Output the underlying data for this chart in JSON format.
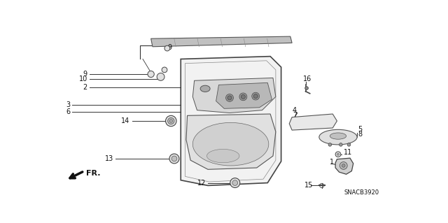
{
  "bg_color": "#ffffff",
  "diagram_code": "SNACB3920",
  "fig_width": 6.4,
  "fig_height": 3.19,
  "line_color": "#333333",
  "label_color": "#111111",
  "part_fill": "#e8e8e8",
  "part_edge": "#444444",
  "label_fs": 7.0
}
